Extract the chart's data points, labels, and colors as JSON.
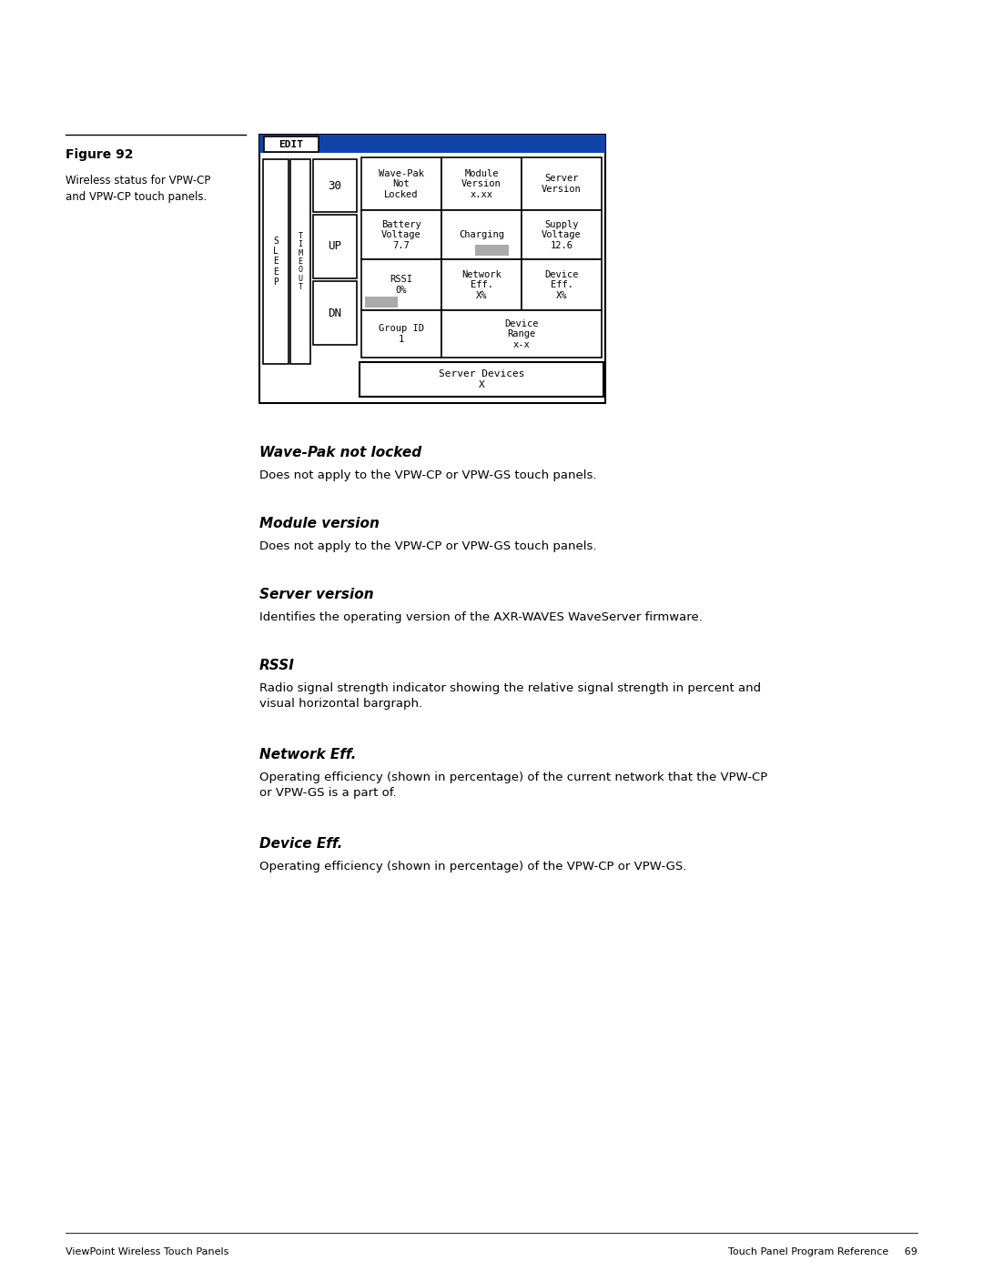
{
  "bg_color": "#ffffff",
  "figure_label": "Figure 92",
  "figure_caption_line1": "Wireless status for VPW-CP",
  "figure_caption_line2": "and VPW-CP touch panels.",
  "sections": [
    {
      "heading": "Wave-Pak not locked",
      "body": "Does not apply to the VPW-CP or VPW-GS touch panels."
    },
    {
      "heading": "Module version",
      "body": "Does not apply to the VPW-CP or VPW-GS touch panels."
    },
    {
      "heading": "Server version",
      "body": "Identifies the operating version of the AXR-WAVES WaveServer firmware."
    },
    {
      "heading": "RSSI",
      "body": "Radio signal strength indicator showing the relative signal strength in percent and\nvisual horizontal bargraph."
    },
    {
      "heading": "Network Eff.",
      "body": "Operating efficiency (shown in percentage) of the current network that the VPW-CP\nor VPW-GS is a part of."
    },
    {
      "heading": "Device Eff.",
      "body": "Operating efficiency (shown in percentage) of the VPW-CP or VPW-GS."
    }
  ],
  "footer_left": "ViewPoint Wireless Touch Panels",
  "footer_right": "Touch Panel Program Reference",
  "footer_page": "69"
}
